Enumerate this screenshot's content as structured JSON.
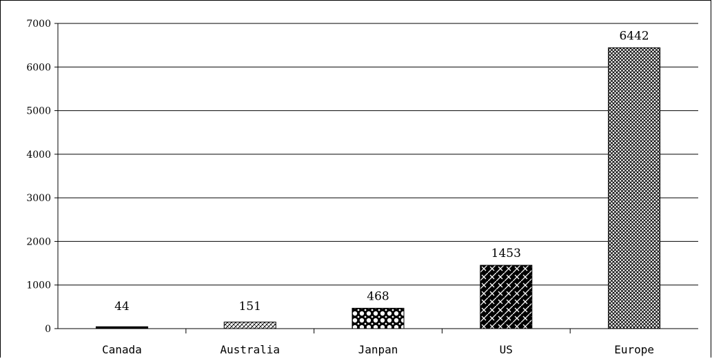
{
  "chart_data": {
    "type": "bar",
    "categories": [
      "Canada",
      "Australia",
      "Janpan",
      "US",
      "Europe"
    ],
    "values": [
      44,
      151,
      468,
      1453,
      6442
    ],
    "data_labels": [
      "44",
      "151",
      "468",
      "1453",
      "6442"
    ],
    "y_ticks": [
      "0",
      "1000",
      "2000",
      "3000",
      "4000",
      "5000",
      "6000",
      "7000"
    ],
    "ylim": [
      0,
      7000
    ],
    "grid": true,
    "legend": "none",
    "bar_patterns": [
      "solid-black",
      "diagonal-hatch",
      "circles",
      "diagonal-brick",
      "crosshatch"
    ]
  }
}
